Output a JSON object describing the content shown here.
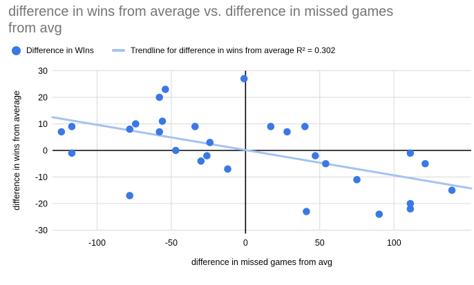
{
  "title": {
    "line1": "difference in wins from average vs. difference in missed games",
    "line2": "from avg",
    "full": "difference in wins from average vs. difference in missed games from avg"
  },
  "legend": {
    "series_label": "Difference in WIns",
    "trendline_label": "Trendline for difference in wins from average R² = 0.302"
  },
  "colors": {
    "point": "#3a78e6",
    "trendline": "#a4c2f4",
    "title_text": "#757575",
    "gridline": "#d9d9d9",
    "zero_line_horizontal": "#424242",
    "zero_line_vertical": "#000000",
    "axis_text": "#000000"
  },
  "chart_data": {
    "type": "scatter",
    "title": "difference in wins from average vs. difference in missed games from avg",
    "xlabel": "difference in missed games from avg",
    "ylabel": "difference in wins from average",
    "xlim": [
      -130,
      152
    ],
    "ylim": [
      -30,
      30
    ],
    "xticks": [
      -100,
      -50,
      0,
      50,
      100
    ],
    "yticks": [
      -30,
      -20,
      -10,
      0,
      10,
      20,
      30
    ],
    "grid": true,
    "legend_position": "top",
    "series": [
      {
        "name": "Difference in WIns",
        "points": [
          [
            -124,
            7
          ],
          [
            -117,
            9
          ],
          [
            -117,
            -1
          ],
          [
            -78,
            8
          ],
          [
            -74,
            10
          ],
          [
            -78,
            -17
          ],
          [
            -58,
            20
          ],
          [
            -54,
            23
          ],
          [
            -56,
            11
          ],
          [
            -58,
            7
          ],
          [
            -47,
            0
          ],
          [
            -34,
            9
          ],
          [
            -30,
            -4
          ],
          [
            -26,
            -2
          ],
          [
            -24,
            3
          ],
          [
            -12,
            -7
          ],
          [
            -1,
            27
          ],
          [
            17,
            9
          ],
          [
            28,
            7
          ],
          [
            40,
            9
          ],
          [
            41,
            -23
          ],
          [
            47,
            -2
          ],
          [
            54,
            -5
          ],
          [
            75,
            -11
          ],
          [
            90,
            -24
          ],
          [
            111,
            -1
          ],
          [
            111,
            -20
          ],
          [
            111,
            -22
          ],
          [
            121,
            -5
          ],
          [
            139,
            -15
          ]
        ]
      }
    ],
    "trendline": {
      "name": "Trendline for difference in wins from average",
      "r_squared": 0.302,
      "x1": -130,
      "y1": 12.5,
      "x2": 152,
      "y2": -14.3
    }
  }
}
